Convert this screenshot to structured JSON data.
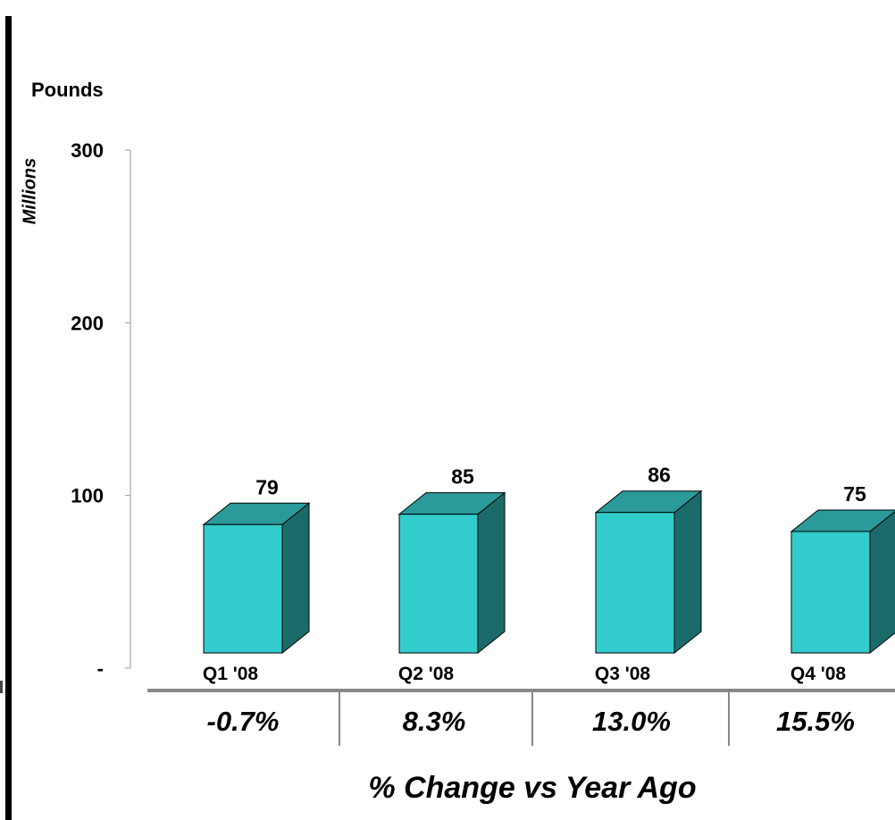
{
  "chart_data": {
    "type": "bar",
    "ylabel": "Pounds",
    "yunit": "Millions",
    "yticks": [
      "-",
      "100",
      "200",
      "300"
    ],
    "ylim": [
      0,
      300
    ],
    "categories": [
      "Q1 '08",
      "Q2 '08",
      "Q3 '08",
      "Q4 '08"
    ],
    "values": [
      79,
      85,
      86,
      75
    ],
    "data_labels": [
      "79",
      "85",
      "86",
      "75"
    ],
    "pct_change": [
      "-0.7%",
      "8.3%",
      "13.0%",
      "15.5%"
    ],
    "footer": "% Change vs Year Ago",
    "grid": false,
    "colors": {
      "front": "#33CCCC",
      "top": "#2A9A9A",
      "side": "#1B6B6B",
      "axis": "#999999"
    }
  }
}
